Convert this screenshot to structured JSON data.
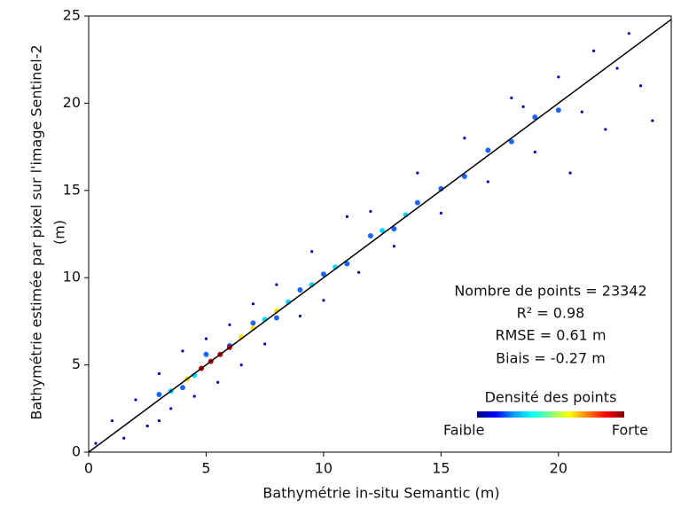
{
  "chart_data": {
    "type": "scatter",
    "x_label": "Bathymétrie in-situ Semantic (m)",
    "y_label": [
      "Bathymétrie estimée par pixel sur l'image Sentinel-2",
      "(m)"
    ],
    "xlim": [
      0,
      24.8
    ],
    "ylim": [
      0,
      25
    ],
    "xticks": [
      0,
      5,
      10,
      15,
      20
    ],
    "yticks": [
      0,
      5,
      10,
      15,
      20,
      25
    ],
    "identity_line": true,
    "series": [
      {
        "color": "#0000b0",
        "x": [
          0.3,
          1,
          1.5,
          2,
          2.5,
          3,
          3.5,
          4,
          4.5,
          5,
          5.5,
          6,
          6.5,
          7,
          7.5,
          8,
          9,
          9.5,
          10,
          11,
          11.5,
          12,
          13,
          14,
          15,
          16,
          17,
          18,
          19,
          20,
          21,
          21.5,
          22,
          22.5,
          23,
          23.5,
          24,
          20.5,
          18.5,
          3
        ],
        "y": [
          0.5,
          1.8,
          0.8,
          3,
          1.5,
          4.5,
          2.5,
          5.8,
          3.2,
          6.5,
          4,
          7.3,
          5,
          8.5,
          6.2,
          9.6,
          7.8,
          11.5,
          8.7,
          13.5,
          10.3,
          13.8,
          11.8,
          16,
          13.7,
          18,
          15.5,
          20.3,
          17.2,
          21.5,
          19.5,
          23,
          18.5,
          22,
          24,
          21,
          19,
          16,
          19.8,
          1.8
        ]
      },
      {
        "color": "#1e64ff",
        "x": [
          3,
          4,
          5,
          6,
          7,
          8,
          9,
          10,
          11,
          12,
          13,
          14,
          15,
          16,
          17,
          18,
          19,
          20
        ],
        "y": [
          3.3,
          3.7,
          5.6,
          6.1,
          7.4,
          7.7,
          9.3,
          10.2,
          10.8,
          12.4,
          12.8,
          14.3,
          15.1,
          15.8,
          17.3,
          17.8,
          19.2,
          19.6
        ]
      },
      {
        "color": "#00d8ff",
        "x": [
          3.5,
          4.5,
          7.5,
          8.5,
          9.5,
          10.5,
          12.5,
          13.5
        ],
        "y": [
          3.5,
          4.4,
          7.6,
          8.6,
          9.6,
          10.6,
          12.7,
          13.6
        ]
      },
      {
        "color": "#ffe000",
        "x": [
          4.2,
          6.5,
          7,
          8
        ],
        "y": [
          4.2,
          6.6,
          7.1,
          8.1
        ]
      },
      {
        "color": "#d00000",
        "x": [
          4.8,
          5.2,
          5.6,
          6
        ],
        "y": [
          4.8,
          5.2,
          5.6,
          6.0
        ]
      }
    ],
    "annotations": [
      "Nombre de points = 23342",
      "R² = 0.98",
      "RMSE = 0.61 m",
      "Biais = -0.27 m"
    ],
    "colorbar": {
      "title": "Densité des points",
      "low_label": "Faible",
      "high_label": "Forte",
      "colors": [
        "#000080",
        "#0000ff",
        "#00a0ff",
        "#00ffff",
        "#80ff80",
        "#ffff00",
        "#ff8000",
        "#ff0000",
        "#800000"
      ]
    }
  }
}
